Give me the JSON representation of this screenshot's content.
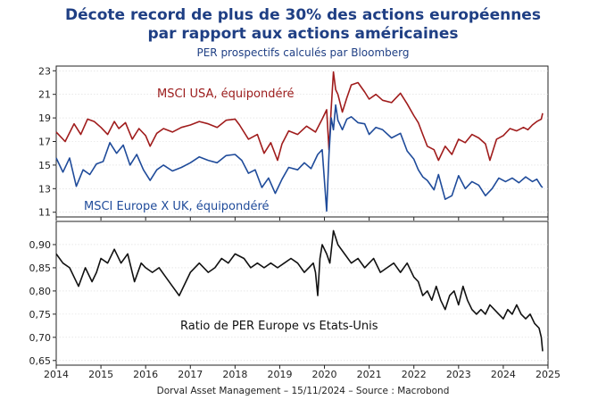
{
  "header": {
    "title_line1": "Décote record de plus de 30% des actions européennes",
    "title_line2": "par rapport aux actions américaines",
    "subtitle": "PER prospectifs calculés par Bloomberg"
  },
  "footer": {
    "source": "Dorval Asset Management – 15/11/2024 –   Source : Macrobond"
  },
  "colors": {
    "title": "#1f3f84",
    "usa": "#a01c1c",
    "europe": "#1f4b9a",
    "ratio": "#111111"
  },
  "chart_data": [
    {
      "type": "line",
      "title": "PER prospectifs",
      "xlim": [
        2014.0,
        2025.0
      ],
      "ylim": [
        10.6,
        23.4
      ],
      "yticks": [
        "11",
        "13",
        "15",
        "17",
        "19",
        "21",
        "23"
      ],
      "xticks": [
        "2014",
        "2015",
        "2016",
        "2017",
        "2018",
        "2019",
        "2020",
        "2021",
        "2022",
        "2023",
        "2024",
        "2025"
      ],
      "series": [
        {
          "name": "MSCI USA, équipondéré",
          "x": [
            2014.0,
            2014.2,
            2014.4,
            2014.55,
            2014.7,
            2014.85,
            2015.0,
            2015.15,
            2015.3,
            2015.4,
            2015.55,
            2015.7,
            2015.85,
            2016.0,
            2016.1,
            2016.25,
            2016.4,
            2016.6,
            2016.8,
            2017.0,
            2017.2,
            2017.4,
            2017.6,
            2017.8,
            2018.0,
            2018.1,
            2018.3,
            2018.5,
            2018.65,
            2018.8,
            2018.95,
            2019.05,
            2019.2,
            2019.4,
            2019.6,
            2019.8,
            2019.95,
            2020.05,
            2020.1,
            2020.15,
            2020.2,
            2020.25,
            2020.3,
            2020.4,
            2020.5,
            2020.6,
            2020.75,
            2020.9,
            2021.0,
            2021.15,
            2021.3,
            2021.5,
            2021.7,
            2021.85,
            2022.0,
            2022.1,
            2022.2,
            2022.3,
            2022.45,
            2022.55,
            2022.7,
            2022.85,
            2023.0,
            2023.15,
            2023.3,
            2023.45,
            2023.6,
            2023.7,
            2023.85,
            2024.0,
            2024.15,
            2024.3,
            2024.45,
            2024.55,
            2024.65,
            2024.75,
            2024.85,
            2024.88
          ],
          "values": [
            17.8,
            17.0,
            18.5,
            17.6,
            18.9,
            18.7,
            18.2,
            17.6,
            18.7,
            18.1,
            18.6,
            17.2,
            18.1,
            17.5,
            16.6,
            17.7,
            18.1,
            17.8,
            18.2,
            18.4,
            18.7,
            18.5,
            18.2,
            18.8,
            18.9,
            18.4,
            17.2,
            17.6,
            16.0,
            16.9,
            15.4,
            16.8,
            17.9,
            17.6,
            18.3,
            17.8,
            18.9,
            19.7,
            16.3,
            19.8,
            22.9,
            21.4,
            21.0,
            19.5,
            20.7,
            21.8,
            22.0,
            21.2,
            20.6,
            21.0,
            20.5,
            20.3,
            21.1,
            20.2,
            19.2,
            18.6,
            17.6,
            16.6,
            16.3,
            15.4,
            16.6,
            15.9,
            17.2,
            16.9,
            17.6,
            17.3,
            16.8,
            15.4,
            17.2,
            17.5,
            18.1,
            17.9,
            18.2,
            18.0,
            18.4,
            18.7,
            18.9,
            19.4
          ]
        },
        {
          "name": "MSCI Europe X UK, équipondéré",
          "x": [
            2014.0,
            2014.15,
            2014.3,
            2014.45,
            2014.6,
            2014.75,
            2014.9,
            2015.05,
            2015.2,
            2015.35,
            2015.5,
            2015.65,
            2015.8,
            2015.95,
            2016.1,
            2016.25,
            2016.4,
            2016.6,
            2016.8,
            2017.0,
            2017.2,
            2017.4,
            2017.6,
            2017.8,
            2018.0,
            2018.15,
            2018.3,
            2018.45,
            2018.6,
            2018.75,
            2018.9,
            2019.05,
            2019.2,
            2019.4,
            2019.55,
            2019.7,
            2019.85,
            2019.95,
            2020.05,
            2020.1,
            2020.15,
            2020.2,
            2020.25,
            2020.3,
            2020.4,
            2020.5,
            2020.6,
            2020.75,
            2020.9,
            2021.0,
            2021.15,
            2021.3,
            2021.5,
            2021.7,
            2021.85,
            2022.0,
            2022.1,
            2022.2,
            2022.3,
            2022.45,
            2022.55,
            2022.7,
            2022.85,
            2023.0,
            2023.15,
            2023.3,
            2023.45,
            2023.6,
            2023.75,
            2023.9,
            2024.05,
            2024.2,
            2024.35,
            2024.5,
            2024.65,
            2024.75,
            2024.85,
            2024.88
          ],
          "values": [
            15.6,
            14.4,
            15.6,
            13.2,
            14.6,
            14.2,
            15.1,
            15.3,
            16.9,
            16.0,
            16.7,
            15.0,
            15.9,
            14.6,
            13.7,
            14.6,
            15.0,
            14.5,
            14.8,
            15.2,
            15.7,
            15.4,
            15.2,
            15.8,
            15.9,
            15.4,
            14.3,
            14.6,
            13.1,
            13.9,
            12.6,
            13.8,
            14.8,
            14.6,
            15.2,
            14.7,
            15.9,
            16.3,
            11.1,
            15.9,
            19.0,
            18.0,
            20.1,
            18.8,
            18.0,
            18.9,
            19.1,
            18.6,
            18.5,
            17.6,
            18.2,
            18.0,
            17.3,
            17.7,
            16.2,
            15.5,
            14.6,
            14.0,
            13.7,
            12.9,
            14.2,
            12.1,
            12.4,
            14.1,
            13.0,
            13.6,
            13.3,
            12.4,
            13.0,
            13.9,
            13.6,
            13.9,
            13.5,
            14.0,
            13.6,
            13.8,
            13.2,
            13.1
          ]
        }
      ]
    },
    {
      "type": "line",
      "title": "Ratio de PER Europe vs Etats-Unis",
      "xlim": [
        2014.0,
        2025.0
      ],
      "ylim": [
        0.64,
        0.95
      ],
      "yticks": [
        "0,65",
        "0,70",
        "0,75",
        "0,80",
        "0,85",
        "0,90"
      ],
      "xticks": [
        "2014",
        "2015",
        "2016",
        "2017",
        "2018",
        "2019",
        "2020",
        "2021",
        "2022",
        "2023",
        "2024",
        "2025"
      ],
      "series": [
        {
          "name": "Ratio de PER Europe vs Etats-Unis",
          "x": [
            2014.0,
            2014.15,
            2014.3,
            2014.4,
            2014.5,
            2014.65,
            2014.8,
            2014.9,
            2015.0,
            2015.15,
            2015.3,
            2015.45,
            2015.6,
            2015.75,
            2015.9,
            2016.0,
            2016.15,
            2016.3,
            2016.45,
            2016.6,
            2016.75,
            2016.9,
            2017.0,
            2017.2,
            2017.4,
            2017.55,
            2017.7,
            2017.85,
            2018.0,
            2018.2,
            2018.35,
            2018.5,
            2018.65,
            2018.8,
            2018.95,
            2019.1,
            2019.25,
            2019.4,
            2019.55,
            2019.65,
            2019.75,
            2019.8,
            2019.85,
            2019.9,
            2019.95,
            2020.05,
            2020.12,
            2020.2,
            2020.3,
            2020.45,
            2020.6,
            2020.75,
            2020.9,
            2021.0,
            2021.1,
            2021.25,
            2021.4,
            2021.55,
            2021.7,
            2021.85,
            2022.0,
            2022.1,
            2022.2,
            2022.3,
            2022.4,
            2022.5,
            2022.6,
            2022.7,
            2022.8,
            2022.9,
            2023.0,
            2023.1,
            2023.2,
            2023.3,
            2023.4,
            2023.5,
            2023.6,
            2023.7,
            2023.8,
            2023.9,
            2024.0,
            2024.1,
            2024.2,
            2024.3,
            2024.4,
            2024.5,
            2024.6,
            2024.7,
            2024.8,
            2024.85,
            2024.88
          ],
          "values": [
            0.88,
            0.86,
            0.85,
            0.83,
            0.81,
            0.85,
            0.82,
            0.84,
            0.87,
            0.86,
            0.89,
            0.86,
            0.88,
            0.82,
            0.86,
            0.85,
            0.84,
            0.85,
            0.83,
            0.81,
            0.79,
            0.82,
            0.84,
            0.86,
            0.84,
            0.85,
            0.87,
            0.86,
            0.88,
            0.87,
            0.85,
            0.86,
            0.85,
            0.86,
            0.85,
            0.86,
            0.87,
            0.86,
            0.84,
            0.85,
            0.86,
            0.84,
            0.79,
            0.87,
            0.9,
            0.88,
            0.86,
            0.93,
            0.9,
            0.88,
            0.86,
            0.87,
            0.85,
            0.86,
            0.87,
            0.84,
            0.85,
            0.86,
            0.84,
            0.86,
            0.83,
            0.82,
            0.79,
            0.8,
            0.78,
            0.81,
            0.78,
            0.76,
            0.79,
            0.8,
            0.77,
            0.81,
            0.78,
            0.76,
            0.75,
            0.76,
            0.75,
            0.77,
            0.76,
            0.75,
            0.74,
            0.76,
            0.75,
            0.77,
            0.75,
            0.74,
            0.75,
            0.73,
            0.72,
            0.7,
            0.67
          ]
        }
      ]
    }
  ]
}
